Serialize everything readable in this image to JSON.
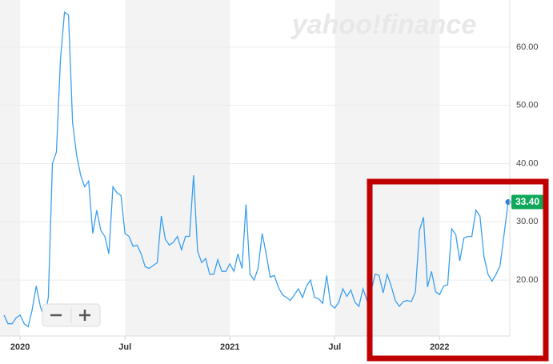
{
  "chart_data": {
    "type": "line",
    "watermark": "yahoo!finance",
    "categories": [
      null,
      null,
      null,
      null,
      "2020",
      null,
      null,
      null,
      null,
      null,
      null,
      null,
      null,
      null,
      null,
      null,
      null,
      null,
      null,
      null,
      null,
      null,
      null,
      null,
      null,
      null,
      null,
      null,
      null,
      null,
      "Jul",
      null,
      null,
      null,
      null,
      null,
      null,
      null,
      null,
      null,
      null,
      null,
      null,
      null,
      null,
      null,
      null,
      null,
      null,
      null,
      null,
      null,
      null,
      null,
      null,
      null,
      "2021",
      null,
      null,
      null,
      null,
      null,
      null,
      null,
      null,
      null,
      null,
      null,
      null,
      null,
      null,
      null,
      null,
      null,
      null,
      null,
      null,
      null,
      null,
      null,
      null,
      null,
      "Jul",
      null,
      null,
      null,
      null,
      null,
      null,
      null,
      null,
      null,
      null,
      null,
      null,
      null,
      null,
      null,
      null,
      null,
      null,
      null,
      null,
      null,
      null,
      null,
      null,
      null,
      "2022",
      null,
      null,
      null,
      null,
      null,
      null,
      null,
      null,
      null,
      null,
      null,
      null,
      null,
      null,
      null,
      null,
      null
    ],
    "series": [
      {
        "color": "#3b9ff0",
        "values": [
          14,
          12.5,
          12.5,
          13.5,
          14,
          12.5,
          12,
          15,
          19,
          15.5,
          13.5,
          17,
          40,
          42,
          58,
          66,
          65.5,
          47,
          41.5,
          38,
          36,
          37,
          28,
          32,
          28.5,
          27.5,
          24.5,
          36,
          35,
          34.5,
          28,
          27.5,
          25.8,
          26,
          24.5,
          22.3,
          22,
          22.5,
          23,
          31,
          27,
          26,
          26.5,
          27.5,
          25.2,
          27.5,
          27.5,
          38,
          25,
          23,
          23.7,
          21,
          21,
          23.5,
          21.5,
          21.5,
          22.8,
          21.5,
          24.5,
          22,
          33,
          21,
          20,
          22,
          28,
          24.5,
          20.5,
          20.8,
          18.8,
          17.5,
          17,
          16.5,
          17.5,
          18.5,
          17,
          19,
          20,
          17,
          16.8,
          16,
          20.8,
          15.8,
          15.2,
          16.2,
          18.5,
          17.2,
          18.3,
          16.2,
          15.5,
          18.5,
          16.5,
          18,
          21,
          20.8,
          17.8,
          21,
          19,
          16.5,
          15.5,
          16.3,
          16.5,
          16.3,
          18,
          28.5,
          30.8,
          18.8,
          21.5,
          18,
          17.5,
          19,
          19.2,
          28.8,
          27.8,
          23.3,
          27.2,
          27.5,
          27.5,
          32,
          31,
          24,
          21,
          19.8,
          21,
          22.5,
          28,
          33.4
        ],
        "value_labels": [
          null,
          null,
          null,
          null,
          null,
          null,
          null,
          null,
          null,
          null,
          null,
          null,
          null,
          null,
          null,
          null,
          null,
          null,
          null,
          null,
          null,
          null,
          null,
          null,
          null,
          null,
          null,
          null,
          null,
          null,
          null,
          null,
          null,
          null,
          null,
          null,
          null,
          null,
          null,
          null,
          null,
          null,
          null,
          null,
          null,
          null,
          null,
          null,
          null,
          null,
          null,
          null,
          null,
          null,
          null,
          null,
          null,
          null,
          null,
          null,
          null,
          null,
          null,
          null,
          null,
          null,
          null,
          null,
          null,
          null,
          null,
          null,
          null,
          null,
          null,
          null,
          null,
          null,
          null,
          null,
          null,
          null,
          null,
          null,
          null,
          null,
          null,
          null,
          null,
          null,
          null,
          null,
          null,
          null,
          null,
          null,
          null,
          null,
          null,
          null,
          null,
          null,
          null,
          null,
          null,
          null,
          null,
          null,
          null,
          null,
          null,
          null,
          null,
          null,
          null,
          null,
          null,
          null,
          null,
          null,
          null,
          null,
          null,
          null,
          null,
          "33.40"
        ]
      }
    ],
    "ylim": [
      10.4,
      67.4
    ],
    "yticks": [
      {
        "value": 20,
        "label": "20.00"
      },
      {
        "value": 30,
        "label": "30.00"
      },
      {
        "value": 40,
        "label": "40.00"
      },
      {
        "value": 50,
        "label": "50.00"
      },
      {
        "value": 60,
        "label": "60.00"
      }
    ],
    "grid": true
  }
}
